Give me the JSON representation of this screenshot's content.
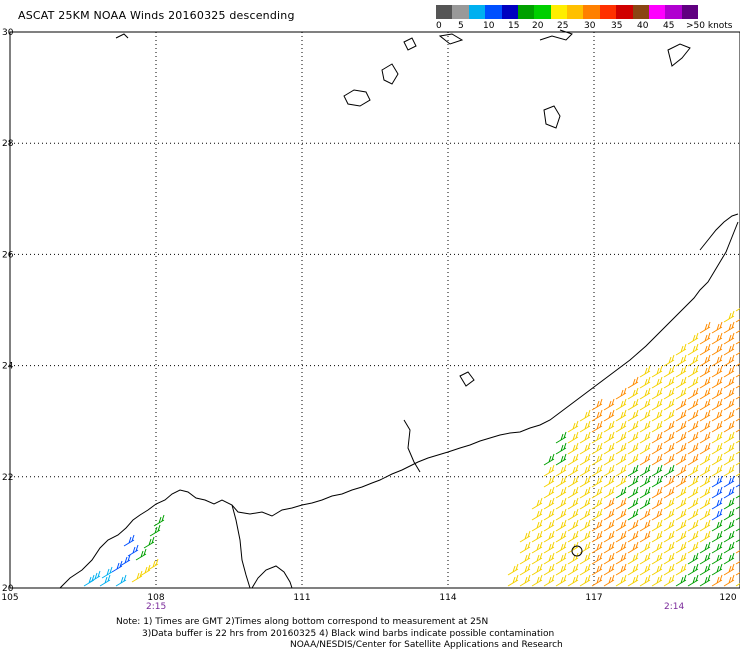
{
  "title": "ASCAT 25KM NOAA Winds 20160325 descending",
  "legend": {
    "colors": [
      "#555555",
      "#999999",
      "#00b0f0",
      "#0050ff",
      "#0000c0",
      "#00a000",
      "#00d000",
      "#ffee00",
      "#ffc000",
      "#ff8000",
      "#ff3000",
      "#d00000",
      "#8b4513",
      "#ff00ff",
      "#b000d0",
      "#600080"
    ],
    "labels": [
      "0",
      "5",
      "10",
      "15",
      "20",
      "25",
      "30",
      "35",
      "40",
      "45",
      ">50 knots"
    ]
  },
  "axes": {
    "lat_labels": [
      "30",
      "28",
      "26",
      "24",
      "22",
      "20"
    ],
    "lon_labels": [
      "105",
      "108",
      "111",
      "114",
      "117",
      "120"
    ],
    "lat_range": [
      20,
      30
    ],
    "lon_range": [
      105,
      120
    ],
    "grid": true
  },
  "swath_times": [
    "2:15",
    "2:14"
  ],
  "notes": {
    "line1": "Note: 1) Times are GMT 2)Times along bottom correspond to measurement at 25N",
    "line2": "3)Data buffer is 22 hrs from 20160325 4) Black wind barbs indicate possible contamination",
    "line3": "NOAA/NESDIS/Center for Satellite Applications and Research"
  },
  "colors": {
    "grid": "#000000",
    "coast": "#000000",
    "time_label": "#7a2a9a",
    "barb_cyan": "#00b0f0",
    "barb_blue": "#0050ff",
    "barb_green": "#00a000",
    "barb_yellow": "#f5d200",
    "barb_orange": "#ff8c00",
    "barb_brown": "#c86400"
  }
}
